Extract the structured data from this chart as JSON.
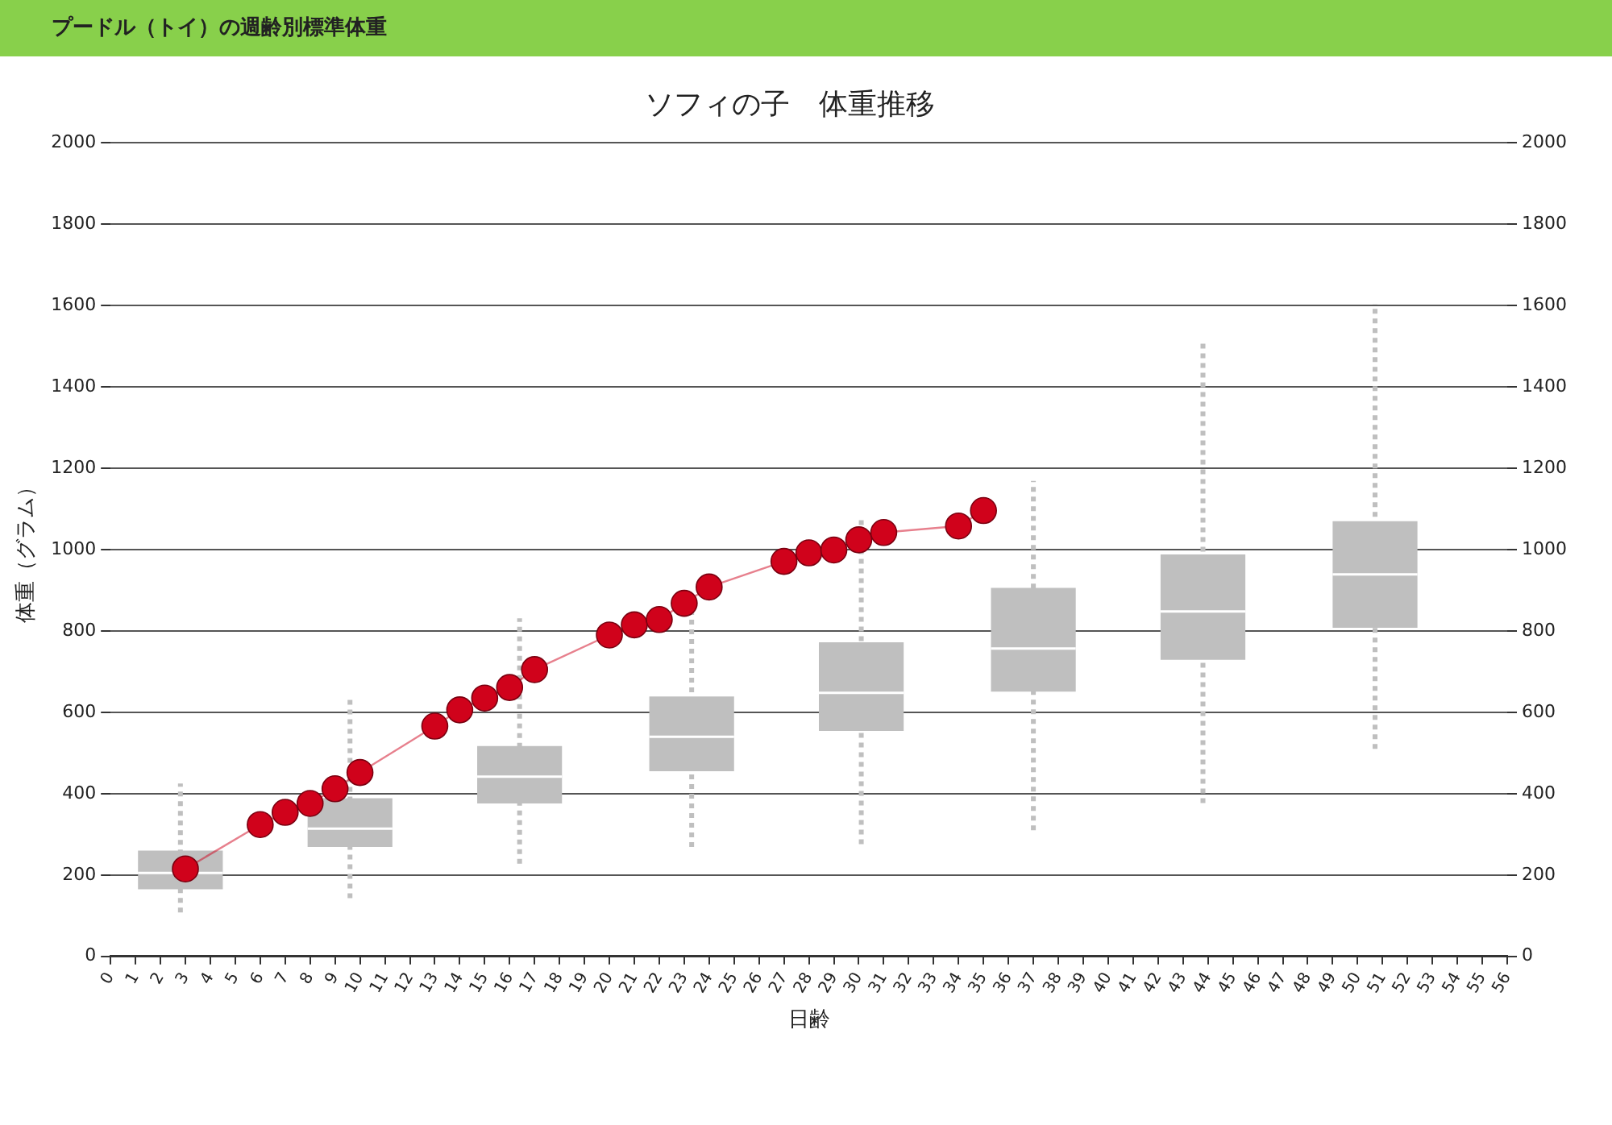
{
  "chart_data": {
    "type": "box",
    "subtitle": "プードル（トイ）の週齢別標準体重",
    "title": "ソフィの子　体重推移",
    "xlabel": "日齢",
    "ylabel": "体重（グラム）",
    "xlim": [
      0,
      56
    ],
    "xticks": [
      0,
      1,
      2,
      3,
      4,
      5,
      6,
      7,
      8,
      9,
      10,
      11,
      12,
      13,
      14,
      15,
      16,
      17,
      18,
      19,
      20,
      21,
      22,
      23,
      24,
      25,
      26,
      27,
      28,
      29,
      30,
      31,
      32,
      33,
      34,
      35,
      36,
      37,
      38,
      39,
      40,
      41,
      42,
      43,
      44,
      45,
      46,
      47,
      48,
      49,
      50,
      51,
      52,
      53,
      54,
      55,
      56
    ],
    "ylim": [
      0,
      2000
    ],
    "yticks": [
      0,
      200,
      400,
      600,
      800,
      1000,
      1200,
      1400,
      1600,
      1800,
      2000
    ],
    "y2lim": [
      0,
      2000
    ],
    "y2ticks": [
      0,
      200,
      400,
      600,
      800,
      1000,
      1200,
      1400,
      1600,
      1800,
      2000
    ],
    "grid": "y",
    "legend": false,
    "series": [
      {
        "type": "box",
        "color": "#bfbfbf",
        "x": [
          2.8,
          9.6,
          16.4,
          23.3,
          30.1,
          37,
          43.8,
          50.7
        ],
        "boxes": [
          {
            "low": 108,
            "q1": 165,
            "median": 205,
            "q3": 260,
            "high": 425
          },
          {
            "low": 143,
            "q1": 269,
            "median": 314,
            "q3": 389,
            "high": 632
          },
          {
            "low": 228,
            "q1": 376,
            "median": 442,
            "q3": 517,
            "high": 831
          },
          {
            "low": 269,
            "q1": 455,
            "median": 540,
            "q3": 639,
            "high": 845
          },
          {
            "low": 276,
            "q1": 554,
            "median": 648,
            "q3": 772,
            "high": 1083
          },
          {
            "low": 310,
            "q1": 651,
            "median": 757,
            "q3": 906,
            "high": 1169
          },
          {
            "low": 377,
            "q1": 729,
            "median": 848,
            "q3": 988,
            "high": 1508
          },
          {
            "low": 510,
            "q1": 808,
            "median": 939,
            "q3": 1070,
            "high": 1604
          }
        ]
      },
      {
        "type": "line",
        "color": "#d0021b",
        "marker": "circle",
        "x": [
          3,
          6,
          7,
          8,
          9,
          10,
          13,
          14,
          15,
          16,
          17,
          20,
          21,
          22,
          23,
          24,
          27,
          28,
          29,
          30,
          31,
          34,
          35
        ],
        "values": [
          215,
          324,
          354,
          376,
          412,
          452,
          566,
          606,
          635,
          661,
          705,
          790,
          815,
          828,
          868,
          908,
          971,
          992,
          999,
          1024,
          1042,
          1058,
          1096
        ]
      }
    ]
  }
}
